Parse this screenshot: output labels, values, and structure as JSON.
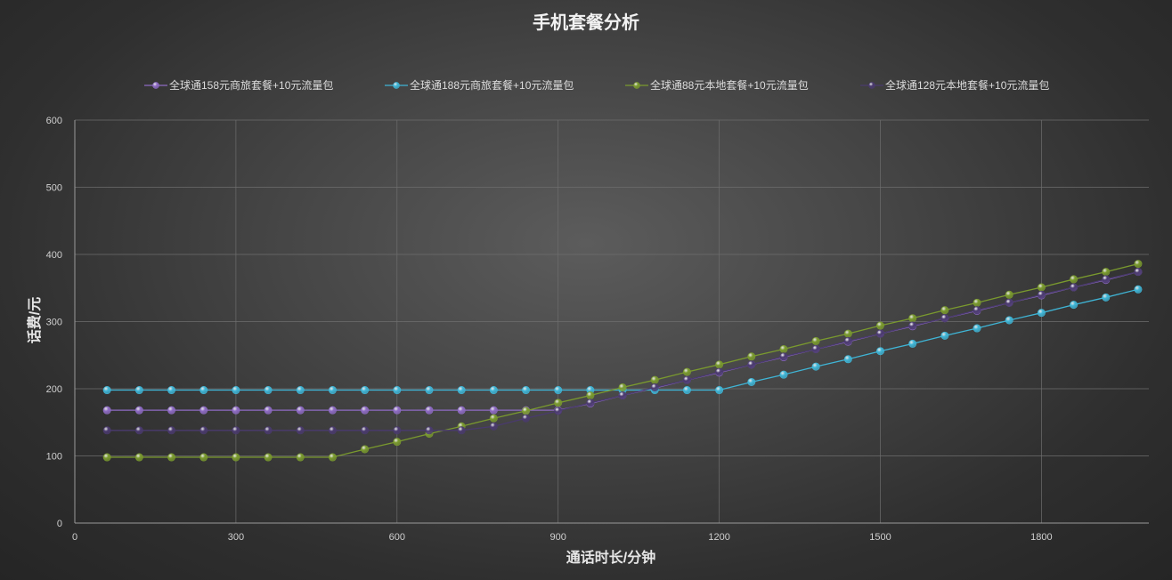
{
  "chart_data": {
    "type": "line",
    "title": "手机套餐分析",
    "xlabel": "通话时长/分钟",
    "ylabel": "话费/元",
    "xlim": [
      0,
      2000
    ],
    "ylim": [
      0,
      600
    ],
    "x_ticks": [
      0,
      300,
      600,
      900,
      1200,
      1500,
      1800
    ],
    "y_ticks": [
      0,
      100,
      200,
      300,
      400,
      500,
      600
    ],
    "grid": true,
    "legend_position": "top",
    "x": [
      60,
      120,
      180,
      240,
      300,
      360,
      420,
      480,
      540,
      600,
      660,
      720,
      780,
      840,
      900,
      960,
      1020,
      1080,
      1140,
      1200,
      1260,
      1320,
      1380,
      1440,
      1500,
      1560,
      1620,
      1680,
      1740,
      1800,
      1860,
      1920,
      1980
    ],
    "series": [
      {
        "name": "全球通158元商旅套餐+10元流量包",
        "color": "#8e6bc4",
        "values": [
          168,
          168,
          168,
          168,
          168,
          168,
          168,
          168,
          168,
          168,
          168,
          168,
          168,
          168,
          168,
          178,
          190,
          201,
          213,
          224,
          236,
          247,
          259,
          270,
          282,
          293,
          305,
          316,
          328,
          339,
          351,
          362,
          374
        ]
      },
      {
        "name": "全球通188元商旅套餐+10元流量包",
        "color": "#3fb5d6",
        "values": [
          198,
          198,
          198,
          198,
          198,
          198,
          198,
          198,
          198,
          198,
          198,
          198,
          198,
          198,
          198,
          198,
          198,
          198,
          198,
          198,
          210,
          221,
          233,
          244,
          256,
          267,
          279,
          290,
          302,
          313,
          325,
          336,
          348
        ]
      },
      {
        "name": "全球通88元本地套餐+10元流量包",
        "color": "#7a9a2e",
        "values": [
          98,
          98,
          98,
          98,
          98,
          98,
          98,
          98,
          110,
          121,
          133,
          144,
          156,
          167,
          179,
          190,
          202,
          213,
          225,
          236,
          248,
          259,
          271,
          282,
          294,
          305,
          317,
          328,
          340,
          351,
          363,
          374,
          386
        ]
      },
      {
        "name": "全球通128元本地套餐+10元流量包",
        "color": "#4a3a6e",
        "values": [
          138,
          138,
          138,
          138,
          138,
          138,
          138,
          138,
          138,
          138,
          138,
          138,
          144,
          156,
          167,
          179,
          190,
          202,
          213,
          225,
          236,
          248,
          259,
          271,
          282,
          294,
          305,
          317,
          328,
          340,
          351,
          363,
          374
        ]
      }
    ]
  }
}
